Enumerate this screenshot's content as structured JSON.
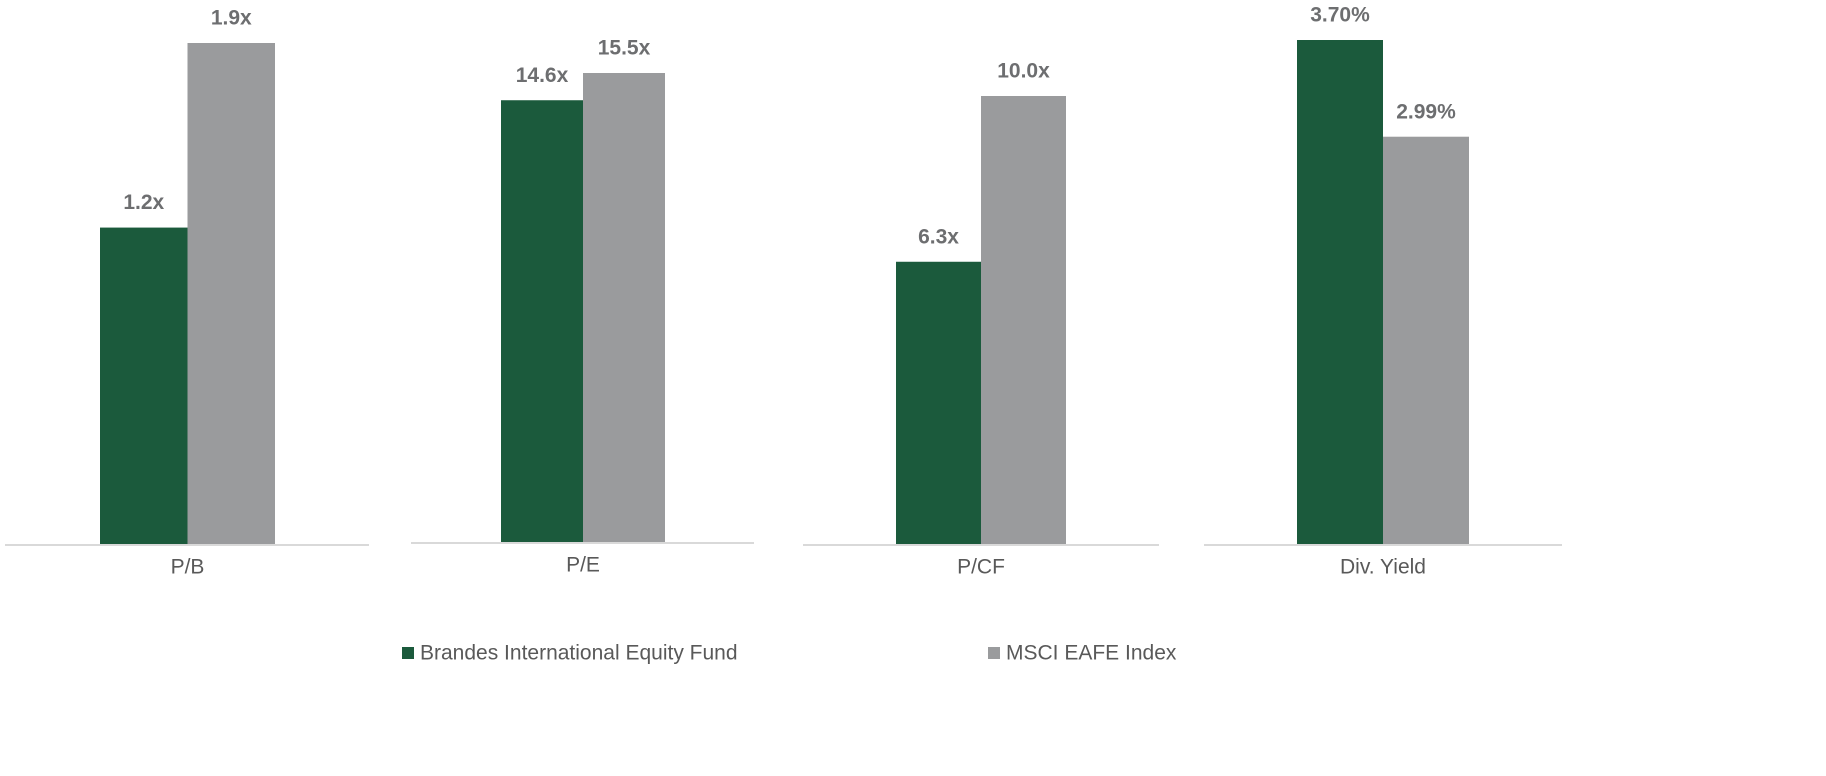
{
  "chart_data": {
    "type": "bar",
    "categories": [
      "P/B",
      "P/E",
      "P/CF",
      "Div. Yield"
    ],
    "series": [
      {
        "name": "Brandes International Equity Fund",
        "color": "#1b5a3c",
        "values": [
          1.2,
          14.6,
          6.3,
          3.7
        ],
        "value_labels": [
          "1.2x",
          "14.6x",
          "6.3x",
          "3.70%"
        ]
      },
      {
        "name": "MSCI EAFE Index",
        "color": "#9a9b9d",
        "values": [
          1.9,
          15.5,
          10.0,
          2.99
        ],
        "value_labels": [
          "1.9x",
          "15.5x",
          "10.0x",
          "2.99%"
        ]
      }
    ]
  }
}
